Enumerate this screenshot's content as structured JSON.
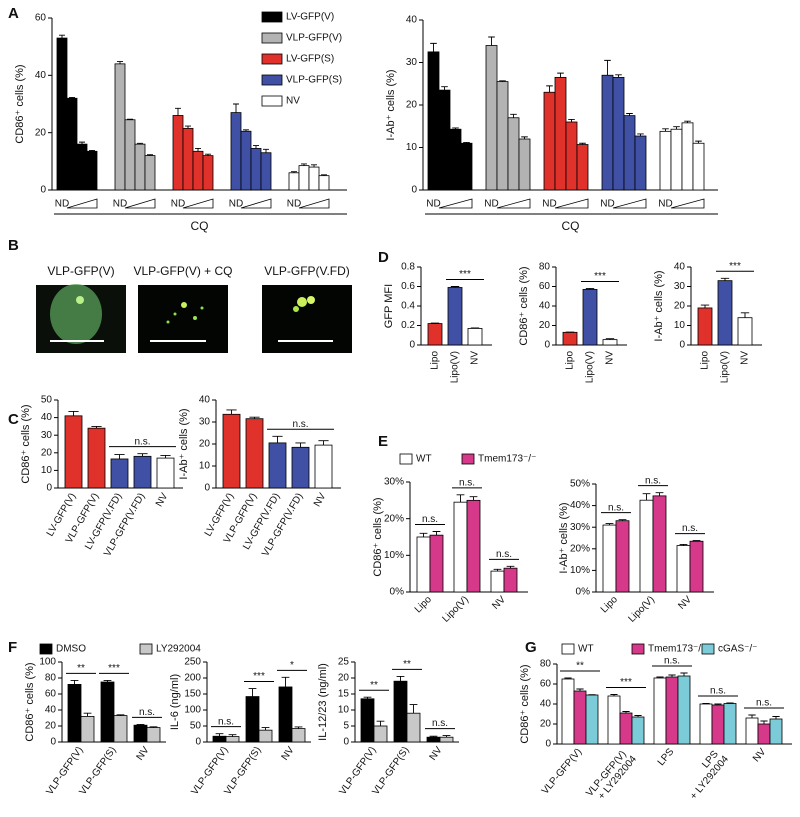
{
  "panel_labels": [
    "A",
    "B",
    "C",
    "D",
    "E",
    "F",
    "G"
  ],
  "panel_b": {
    "titles": [
      "VLP-GFP(V)",
      "VLP-GFP(V) + CQ",
      "VLP-GFP(V.FD)"
    ]
  },
  "chart_data": [
    {
      "type": "bar",
      "ylabel": "CD86⁺ cells (%)",
      "xlabel": "CQ",
      "ylim": [
        0,
        60
      ],
      "yticks": [
        0,
        20,
        40,
        60
      ],
      "legend": "upper right",
      "categories": [
        "ND",
        null,
        null,
        null
      ],
      "series": [
        {
          "name": "LV-GFP(V)",
          "color": "#000000",
          "values": [
            53,
            32,
            16,
            13.5
          ],
          "errors": [
            1,
            0.3,
            0.7,
            0.3
          ]
        },
        {
          "name": "VLP-GFP(V)",
          "color": "#b3b3b3",
          "values": [
            44,
            24.5,
            16,
            12
          ],
          "errors": [
            0.8,
            0.2,
            0.3,
            0.3
          ]
        },
        {
          "name": "LV-GFP(S)",
          "color": "#e0312b",
          "values": [
            26,
            21.5,
            13.5,
            12
          ],
          "errors": [
            2.5,
            0.8,
            1,
            0.5
          ]
        },
        {
          "name": "VLP-GFP(S)",
          "color": "#3f50a5",
          "values": [
            27,
            20.5,
            14.5,
            13
          ],
          "errors": [
            3,
            0.5,
            1,
            1.2
          ]
        },
        {
          "name": "NV",
          "color": "#ffffff",
          "values": [
            6,
            8.5,
            8,
            5
          ],
          "errors": [
            0.4,
            0.6,
            0.8,
            0.3
          ]
        }
      ]
    },
    {
      "type": "bar",
      "ylabel": "I-Ab⁺ cells (%)",
      "xlabel": "CQ",
      "ylim": [
        0,
        40
      ],
      "yticks": [
        0,
        10,
        20,
        30,
        40
      ],
      "categories": [
        "ND",
        null,
        null,
        null
      ],
      "series": [
        {
          "color": "#000000",
          "values": [
            32.5,
            23.5,
            14.3,
            11
          ],
          "errors": [
            2,
            0.8,
            0.3,
            0.2
          ]
        },
        {
          "color": "#b3b3b3",
          "values": [
            34,
            25.5,
            17,
            12
          ],
          "errors": [
            2,
            0.2,
            0.8,
            0.5
          ]
        },
        {
          "color": "#e0312b",
          "values": [
            23,
            26.5,
            16,
            10.7
          ],
          "errors": [
            1.5,
            1,
            0.6,
            0.3
          ]
        },
        {
          "color": "#3f50a5",
          "values": [
            27,
            26.5,
            17.5,
            12.7
          ],
          "errors": [
            3.5,
            0.6,
            0.5,
            0.5
          ]
        },
        {
          "color": "#ffffff",
          "values": [
            13.8,
            14.3,
            15.8,
            11
          ],
          "errors": [
            0.6,
            0.6,
            0.4,
            0.5
          ]
        }
      ]
    },
    {
      "type": "bar",
      "ylabel": "CD86⁺ cells (%)",
      "ylim": [
        0,
        50
      ],
      "yticks": [
        0,
        10,
        20,
        30,
        40,
        50
      ],
      "categories": [
        "LV-GFP(V)",
        "VLP-GFP(V)",
        "LV-GFP(V.FD)",
        "VLP-GFP(V.FD)",
        "NV"
      ],
      "values": [
        41,
        34,
        16.5,
        18,
        17
      ],
      "errors": [
        2.5,
        1,
        2.5,
        1.5,
        1.5
      ],
      "colors": [
        "#e0312b",
        "#e0312b",
        "#3f50a5",
        "#3f50a5",
        "#ffffff"
      ],
      "annotations": [
        "n.s."
      ]
    },
    {
      "type": "bar",
      "ylabel": "I-Ab⁺ cells (%)",
      "ylim": [
        0,
        40
      ],
      "yticks": [
        0,
        10,
        20,
        30,
        40
      ],
      "categories": [
        "LV-GFP(V)",
        "VLP-GFP(V)",
        "LV-GFP(V.FD)",
        "VLP-GFP(V.FD)",
        "NV"
      ],
      "values": [
        33.5,
        31.5,
        20.5,
        18.5,
        19.5
      ],
      "errors": [
        2,
        0.7,
        3,
        2,
        2
      ],
      "colors": [
        "#e0312b",
        "#e0312b",
        "#3f50a5",
        "#3f50a5",
        "#ffffff"
      ],
      "annotations": [
        "n.s."
      ]
    },
    {
      "type": "bar",
      "ylabel": "GFP MFI",
      "ylim": [
        0,
        0.8
      ],
      "yticks": [
        0,
        0.2,
        0.4,
        0.6,
        0.8
      ],
      "categories": [
        "Lipo",
        "Lipo(V)",
        "NV"
      ],
      "values": [
        0.22,
        0.59,
        0.17
      ],
      "errors": [
        0.005,
        0.01,
        0.005
      ],
      "colors": [
        "#e0312b",
        "#3f50a5",
        "#ffffff"
      ],
      "annotations": [
        "***"
      ]
    },
    {
      "type": "bar",
      "ylabel": "CD86⁺ cells (%)",
      "ylim": [
        0,
        80
      ],
      "yticks": [
        0,
        20,
        40,
        60,
        80
      ],
      "categories": [
        "Lipo",
        "Lipo(V)",
        "NV"
      ],
      "values": [
        13,
        57,
        5.5
      ],
      "errors": [
        0.2,
        1,
        1
      ],
      "colors": [
        "#e0312b",
        "#3f50a5",
        "#ffffff"
      ],
      "annotations": [
        "***"
      ]
    },
    {
      "type": "bar",
      "ylabel": "I-Ab⁺ cells (%)",
      "ylim": [
        0,
        40
      ],
      "yticks": [
        0,
        10,
        20,
        30,
        40
      ],
      "categories": [
        "Lipo",
        "Lipo(V)",
        "NV"
      ],
      "values": [
        19,
        33,
        14
      ],
      "errors": [
        1.5,
        1.2,
        2.5
      ],
      "colors": [
        "#e0312b",
        "#3f50a5",
        "#ffffff"
      ],
      "annotations": [
        "***"
      ]
    },
    {
      "type": "bar",
      "ylabel": "CD86⁺ cells (%)",
      "ylim": [
        0,
        30
      ],
      "legend": "top",
      "yticks": [
        {
          "value": 0,
          "label": "0%"
        },
        {
          "value": 10,
          "label": "10%"
        },
        {
          "value": 20,
          "label": "20%"
        },
        {
          "value": 30,
          "label": "30%"
        }
      ],
      "categories": [
        "Lipo",
        "Lipo(V)",
        "NV"
      ],
      "series": [
        {
          "name": "WT",
          "color": "#ffffff",
          "values": [
            15,
            24.5,
            5.7
          ],
          "errors": [
            1,
            2,
            0.5
          ]
        },
        {
          "name": "Tmem173⁻/⁻",
          "color": "#d6388a",
          "values": [
            15.5,
            25,
            6.5
          ],
          "errors": [
            1,
            1,
            0.5
          ]
        }
      ],
      "annotations": [
        "n.s.",
        "n.s.",
        "n.s."
      ]
    },
    {
      "type": "bar",
      "ylabel": "I-Ab⁺ cells (%)",
      "ylim": [
        0,
        50
      ],
      "yticks": [
        {
          "value": 0,
          "label": "0%"
        },
        {
          "value": 10,
          "label": "10%"
        },
        {
          "value": 20,
          "label": "20%"
        },
        {
          "value": 30,
          "label": "30%"
        },
        {
          "value": 40,
          "label": "40%"
        },
        {
          "value": 50,
          "label": "50%"
        }
      ],
      "categories": [
        "Lipo",
        "Lipo(V)",
        "NV"
      ],
      "series": [
        {
          "color": "#ffffff",
          "values": [
            31,
            42.5,
            21.5
          ],
          "errors": [
            0.7,
            3,
            0.5
          ]
        },
        {
          "color": "#d6388a",
          "values": [
            33,
            44.5,
            23.5
          ],
          "errors": [
            0.5,
            1.5,
            0.3
          ]
        }
      ],
      "annotations": [
        "n.s.",
        "n.s.",
        "n.s."
      ]
    },
    {
      "type": "bar",
      "ylabel": "CD86⁺ cells (%)",
      "ylim": [
        0,
        100
      ],
      "yticks": [
        0,
        20,
        40,
        60,
        80,
        100
      ],
      "legend": "top",
      "categories": [
        "VLP-GFP(V)",
        "VLP-GFP(S)",
        "NV"
      ],
      "series": [
        {
          "name": "DMSO",
          "color": "#000000",
          "values": [
            72,
            75,
            21
          ],
          "errors": [
            5,
            2,
            1
          ]
        },
        {
          "name": "LY292004",
          "color": "#c8c8c8",
          "values": [
            32,
            33,
            18
          ],
          "errors": [
            4,
            1,
            1
          ]
        }
      ],
      "annotations": [
        "**",
        "***",
        "n.s."
      ]
    },
    {
      "type": "bar",
      "ylabel": "IL-6 (ng/ml)",
      "ylim": [
        0,
        250
      ],
      "yticks": [
        0,
        50,
        100,
        150,
        200,
        250
      ],
      "categories": [
        "VLP-GFP(V)",
        "VLP-GFP(S)",
        "NV"
      ],
      "series": [
        {
          "color": "#000000",
          "values": [
            18,
            142,
            172
          ],
          "errors": [
            8,
            25,
            30
          ]
        },
        {
          "color": "#c8c8c8",
          "values": [
            17,
            37,
            42
          ],
          "errors": [
            6,
            8,
            5
          ]
        }
      ],
      "annotations": [
        "n.s.",
        "***",
        "*"
      ]
    },
    {
      "type": "bar",
      "ylabel": "IL-12/23 (ng/ml)",
      "ylim": [
        0,
        25
      ],
      "yticks": [
        0,
        5,
        10,
        15,
        20,
        25
      ],
      "categories": [
        "VLP-GFP(V)",
        "VLP-GFP(S)",
        "NV"
      ],
      "series": [
        {
          "color": "#000000",
          "values": [
            13.5,
            19,
            1.5
          ],
          "errors": [
            0.5,
            1.5,
            0.3
          ]
        },
        {
          "color": "#c8c8c8",
          "values": [
            5,
            9,
            1.5
          ],
          "errors": [
            1.5,
            2.7,
            0.5
          ]
        }
      ],
      "annotations": [
        "**",
        "**",
        "n.s."
      ]
    },
    {
      "type": "bar",
      "ylabel": "CD86⁺ cells (%)",
      "ylim": [
        0,
        80
      ],
      "yticks": [
        0,
        20,
        40,
        60,
        80
      ],
      "legend": "top",
      "categories": [
        "VLP-GFP(V)",
        "VLP-GFP(V) + LY292004",
        "LPS",
        "LPS + LY292004",
        "NV"
      ],
      "series": [
        {
          "name": "WT",
          "color": "#ffffff",
          "values": [
            65,
            48,
            66,
            40,
            26
          ],
          "errors": [
            1,
            1.5,
            1,
            0.5,
            3
          ]
        },
        {
          "name": "Tmem173⁻/⁻",
          "color": "#d6388a",
          "values": [
            53,
            31,
            67,
            39,
            20
          ],
          "errors": [
            2,
            1.5,
            2,
            1,
            3
          ]
        },
        {
          "name": "cGAS⁻/⁻",
          "color": "#7ccbd9",
          "values": [
            49,
            27,
            68,
            40.5,
            25
          ],
          "errors": [
            0.3,
            1.5,
            3,
            0.5,
            2.5
          ]
        }
      ],
      "annotations": [
        "**",
        "***",
        "n.s.",
        "n.s.",
        "n.s."
      ]
    }
  ]
}
